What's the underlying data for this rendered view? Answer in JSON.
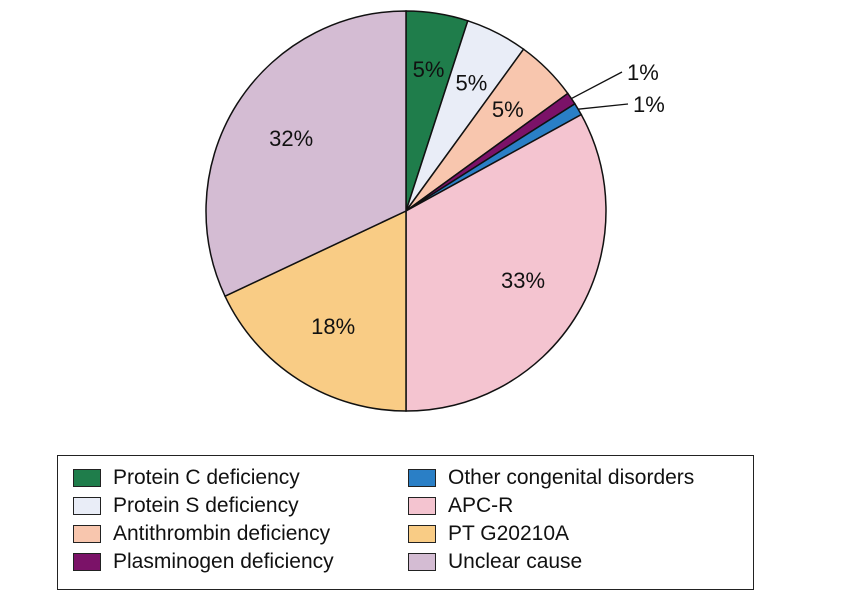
{
  "chart_data": {
    "type": "pie",
    "title": "",
    "slices": [
      {
        "label": "Protein C deficiency",
        "value": 5,
        "display": "5%",
        "color": "#1f7d4b"
      },
      {
        "label": "Protein S deficiency",
        "value": 5,
        "display": "5%",
        "color": "#e9edf7"
      },
      {
        "label": "Antithrombin deficiency",
        "value": 5,
        "display": "5%",
        "color": "#f8c6ae"
      },
      {
        "label": "Plasminogen deficiency",
        "value": 1,
        "display": "1%",
        "color": "#7b1268"
      },
      {
        "label": "Other congenital disorders",
        "value": 1,
        "display": "1%",
        "color": "#2a7fc6"
      },
      {
        "label": "APC-R",
        "value": 33,
        "display": "33%",
        "color": "#f4c4d0"
      },
      {
        "label": "PT G20210A",
        "value": 18,
        "display": "18%",
        "color": "#f9cc85"
      },
      {
        "label": "Unclear cause",
        "value": 32,
        "display": "32%",
        "color": "#d4bcd3"
      }
    ],
    "start_angle": "top",
    "direction": "clockwise",
    "legend_placement": "bottom"
  }
}
